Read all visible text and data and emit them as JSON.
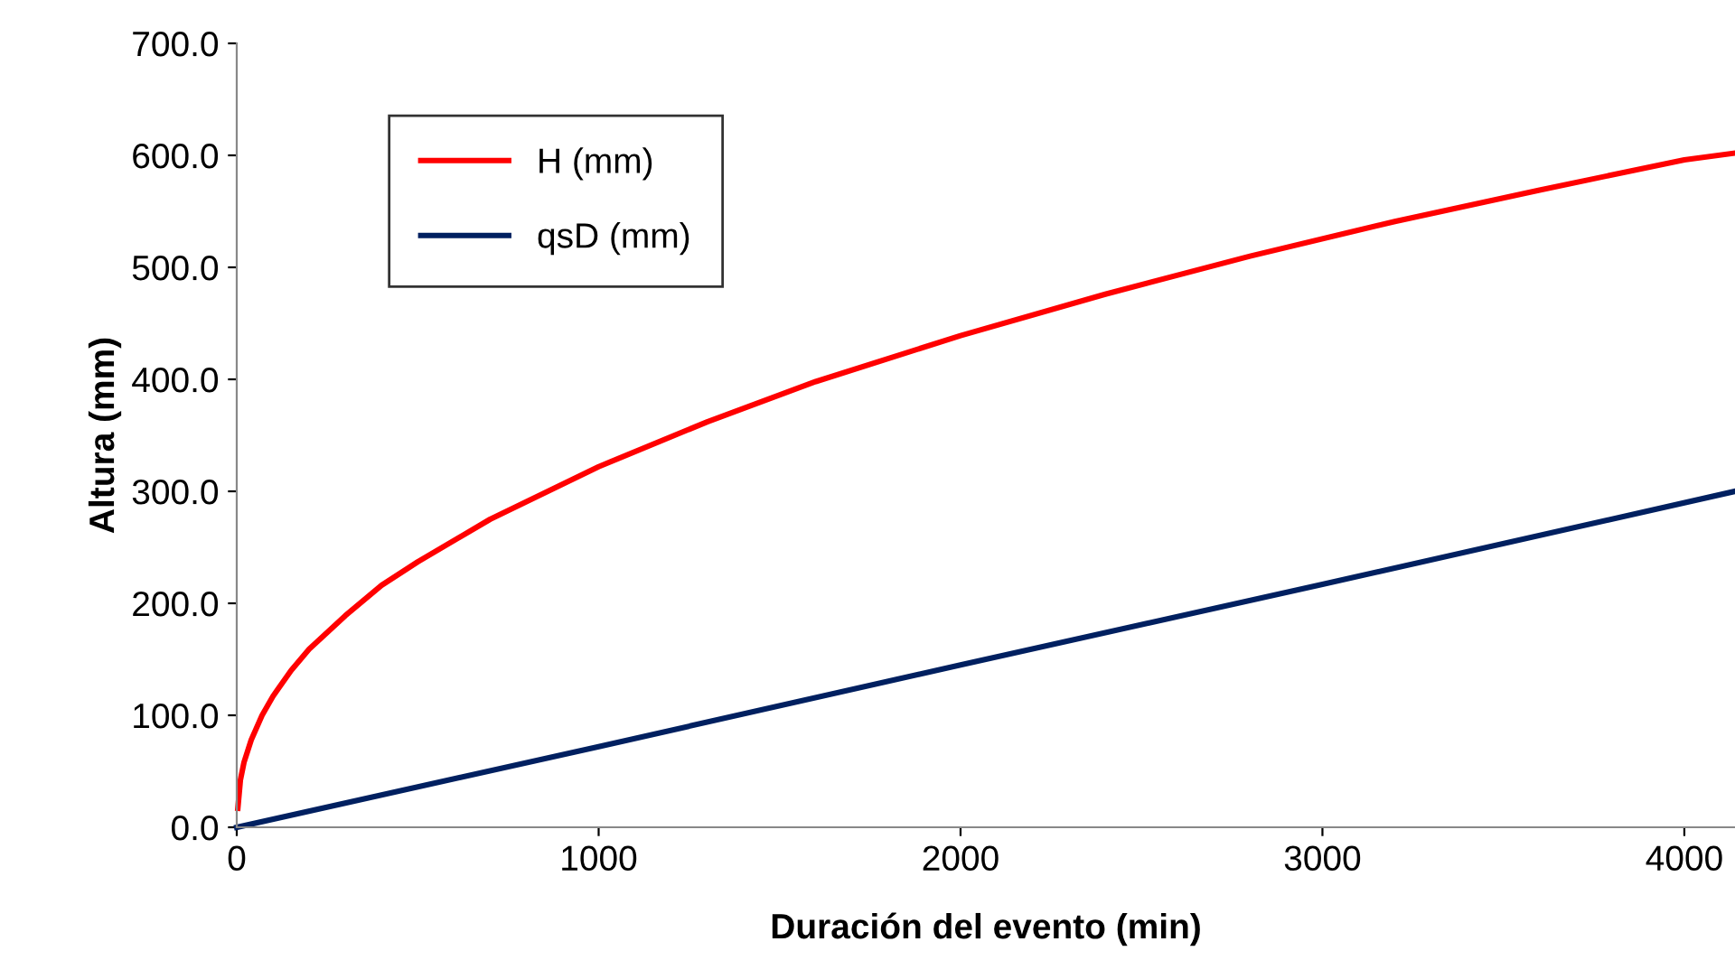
{
  "chart_data": {
    "type": "line",
    "xlabel": "Duración del evento (min)",
    "ylabel": "Altura (mm)",
    "xlim": [
      0,
      4140
    ],
    "ylim": [
      0,
      700
    ],
    "xticks": [
      0,
      1000,
      2000,
      3000,
      4000
    ],
    "yticks": [
      {
        "value": 0,
        "label": "0.0"
      },
      {
        "value": 100,
        "label": "100.0"
      },
      {
        "value": 200,
        "label": "200.0"
      },
      {
        "value": 300,
        "label": "300.0"
      },
      {
        "value": 400,
        "label": "400.0"
      },
      {
        "value": 500,
        "label": "500.0"
      },
      {
        "value": 600,
        "label": "600.0"
      },
      {
        "value": 700,
        "label": "700.0"
      }
    ],
    "grid": false,
    "legend": "top left",
    "marker": "none",
    "line_style": "solid",
    "series": [
      {
        "name": "H (mm)",
        "color": "#ff0000",
        "x": [
          3,
          10,
          20,
          40,
          70,
          100,
          150,
          200,
          300,
          400,
          500,
          700,
          1000,
          1300,
          1600,
          2000,
          2400,
          2800,
          3200,
          3600,
          4000,
          4140
        ],
        "values": [
          17,
          42,
          58,
          78,
          100,
          117,
          140,
          159,
          189,
          216,
          237,
          275,
          322,
          362,
          398,
          439,
          476,
          510,
          541,
          569,
          596,
          602
        ]
      },
      {
        "name": "qsD (mm)",
        "color": "#002060",
        "x": [
          0,
          1000,
          2000,
          3000,
          4140
        ],
        "values": [
          0,
          72,
          145,
          217,
          300
        ]
      }
    ]
  }
}
